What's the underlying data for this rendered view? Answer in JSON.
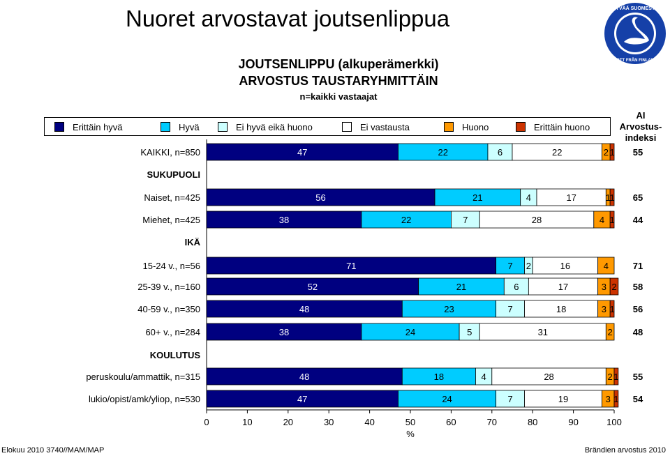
{
  "page": {
    "title": "Nuoret arvostavat joutsenlippua",
    "subtitle1": "JOUTSENLIPPU (alkuperämerkki)",
    "subtitle2": "ARVOSTUS TAUSTARYHMITTÄIN",
    "subtitle3": "n=kaikki vastaajat",
    "index_header": [
      "AI",
      "Arvostus-",
      "indeksi"
    ],
    "footer_left": "Elokuu 2010 3740//MAM/MAP",
    "footer_right": "Brändien arvostus 2010",
    "logo": {
      "icon": "swan-logo-icon",
      "text": "HYVÄÄ SUOMESTA · GOTT FRÅN FINLAND"
    }
  },
  "legend": [
    {
      "label": "Erittäin hyvä",
      "color": "#000080"
    },
    {
      "label": "Hyvä",
      "color": "#00CCFF"
    },
    {
      "label": "Ei hyvä eikä huono",
      "color": "#CCFFFF"
    },
    {
      "label": "Ei vastausta",
      "color": "#FFFFFF"
    },
    {
      "label": "Huono",
      "color": "#FF9900"
    },
    {
      "label": "Erittäin huono",
      "color": "#CC3300"
    }
  ],
  "chart_data": {
    "type": "bar",
    "orientation": "horizontal-stacked-100",
    "xlabel": "%",
    "xlim": [
      0,
      100
    ],
    "xticks": [
      0,
      10,
      20,
      30,
      40,
      50,
      60,
      70,
      80,
      90,
      100
    ],
    "series_names": [
      "Erittäin hyvä",
      "Hyvä",
      "Ei hyvä eikä huono",
      "Ei vastausta",
      "Huono",
      "Erittäin huono"
    ],
    "rows": [
      {
        "label": "KAIKKI, n=850",
        "kind": "data",
        "values": [
          47,
          22,
          6,
          22,
          2,
          1
        ],
        "index": "55"
      },
      {
        "label": "SUKUPUOLI",
        "kind": "section"
      },
      {
        "label": "Naiset, n=425",
        "kind": "data",
        "values": [
          56,
          21,
          4,
          17,
          1,
          1
        ],
        "index": "65"
      },
      {
        "label": "Miehet, n=425",
        "kind": "data",
        "values": [
          38,
          22,
          7,
          28,
          4,
          1
        ],
        "index": "44"
      },
      {
        "label": "IKÄ",
        "kind": "section"
      },
      {
        "label": "15-24 v., n=56",
        "kind": "data",
        "values": [
          71,
          7,
          2,
          16,
          4,
          0
        ],
        "index": "71"
      },
      {
        "label": "25-39 v., n=160",
        "kind": "data",
        "values": [
          52,
          21,
          6,
          17,
          3,
          2
        ],
        "index": "58"
      },
      {
        "label": "40-59 v., n=350",
        "kind": "data",
        "values": [
          48,
          23,
          7,
          18,
          3,
          1
        ],
        "index": "56"
      },
      {
        "label": "60+ v., n=284",
        "kind": "data",
        "values": [
          38,
          24,
          5,
          31,
          2,
          0
        ],
        "index": "48"
      },
      {
        "label": "KOULUTUS",
        "kind": "section"
      },
      {
        "label": "peruskoulu/ammattik, n=315",
        "kind": "data",
        "values": [
          48,
          18,
          4,
          28,
          2,
          1
        ],
        "index": "55"
      },
      {
        "label": "lukio/opist/amk/yliop, n=530",
        "kind": "data",
        "values": [
          47,
          24,
          7,
          19,
          3,
          1
        ],
        "index": "54"
      }
    ]
  }
}
